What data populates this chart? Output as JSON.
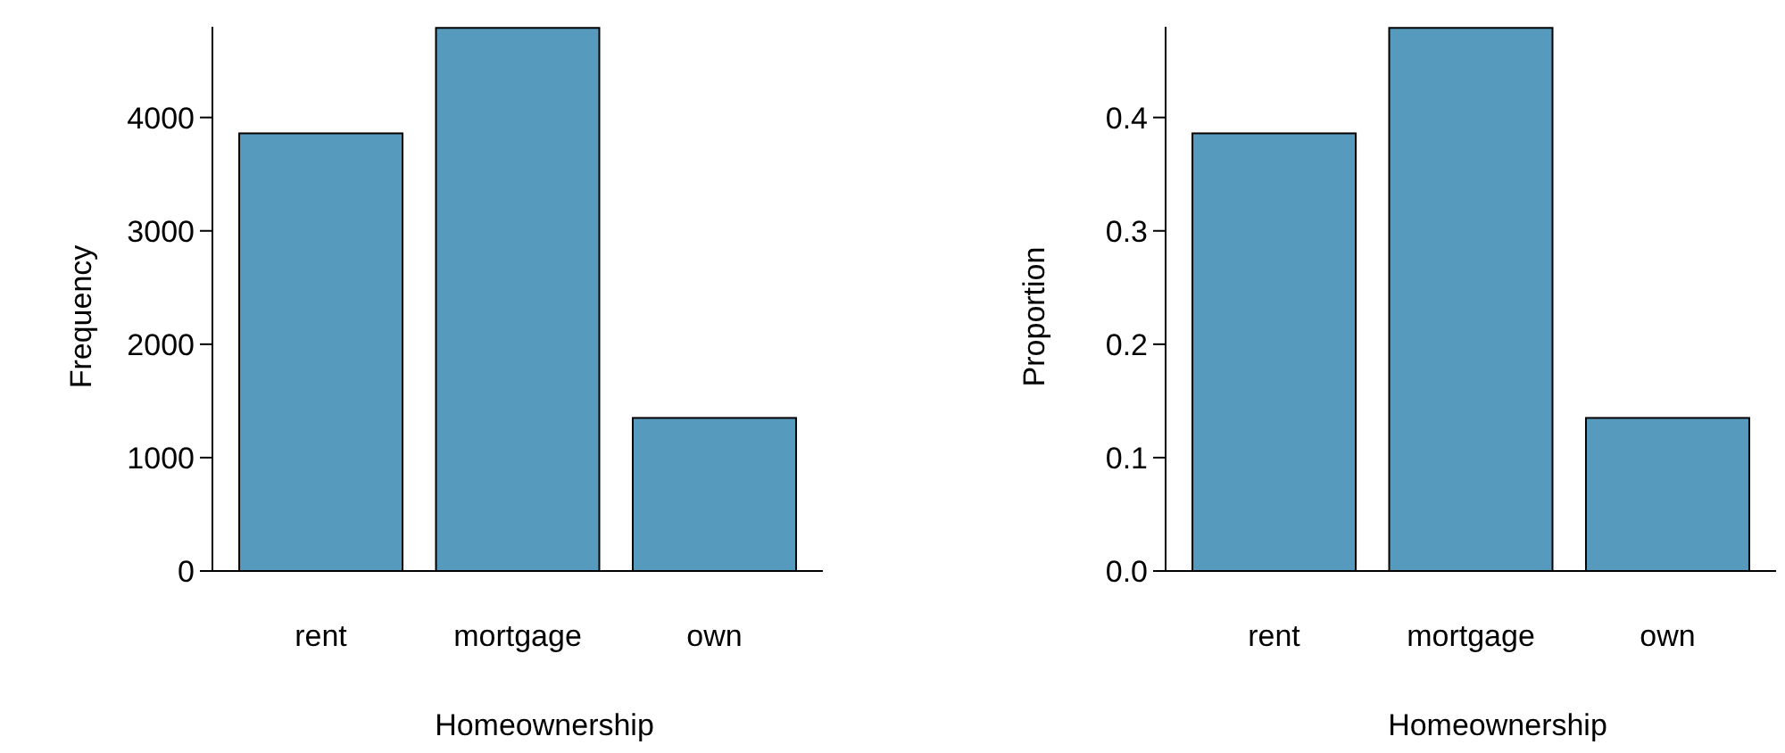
{
  "chart_data": [
    {
      "type": "bar",
      "categories": [
        "rent",
        "mortgage",
        "own"
      ],
      "values": [
        3860,
        4790,
        1350
      ],
      "color": "#569bbd",
      "xlabel": "Homeownership",
      "ylabel": "Frequency",
      "ylim": [
        0,
        4800
      ],
      "yticks": [
        0,
        1000,
        2000,
        3000,
        4000
      ],
      "grid": false
    },
    {
      "type": "bar",
      "categories": [
        "rent",
        "mortgage",
        "own"
      ],
      "values": [
        0.386,
        0.479,
        0.135
      ],
      "color": "#569bbd",
      "xlabel": "Homeownership",
      "ylabel": "Proportion",
      "ylim": [
        0,
        0.48
      ],
      "yticks": [
        {
          "value": 0,
          "label": "0.0"
        },
        0.1,
        0.2,
        0.3,
        0.4
      ],
      "grid": false
    }
  ]
}
